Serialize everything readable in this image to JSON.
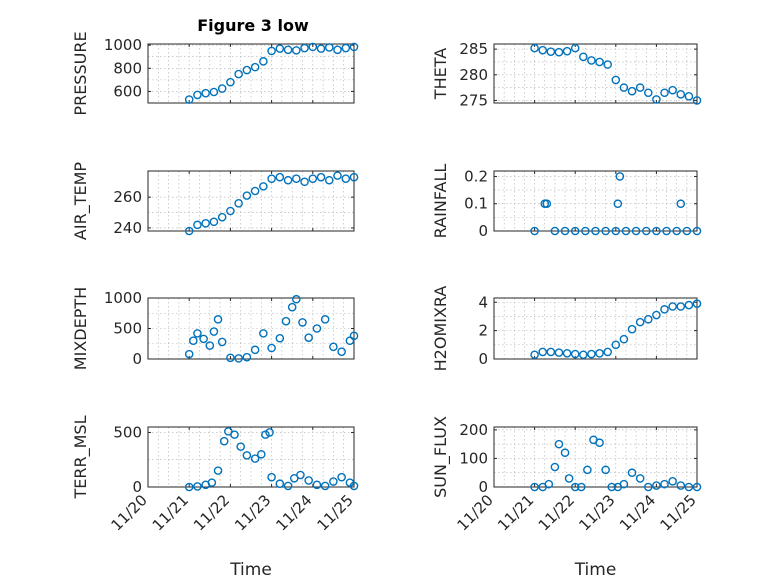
{
  "figure": {
    "title": "Figure 3 low"
  },
  "chart_data": [
    {
      "type": "scatter",
      "ylabel": "PRESSURE",
      "xlabel": "",
      "x_tick_labels": [
        "11/20",
        "11/21",
        "11/22",
        "11/23",
        "11/24",
        "11/25"
      ],
      "y_ticks": [
        600,
        800,
        1000
      ],
      "y_tick_labels": [
        "600",
        "800",
        "1000"
      ],
      "ylim": [
        500,
        1010
      ],
      "x": [
        1.0,
        1.2,
        1.4,
        1.6,
        1.8,
        2.0,
        2.2,
        2.4,
        2.6,
        2.8,
        3.0,
        3.2,
        3.4,
        3.6,
        3.8,
        4.0,
        4.2,
        4.4,
        4.6,
        4.8,
        5.0
      ],
      "y": [
        530,
        570,
        585,
        595,
        625,
        680,
        750,
        785,
        810,
        860,
        950,
        970,
        960,
        955,
        975,
        985,
        970,
        980,
        960,
        975,
        985
      ]
    },
    {
      "type": "scatter",
      "ylabel": "THETA",
      "xlabel": "",
      "x_tick_labels": [
        "11/20",
        "11/21",
        "11/22",
        "11/23",
        "11/24",
        "11/25"
      ],
      "y_ticks": [
        275,
        280,
        285
      ],
      "y_tick_labels": [
        "275",
        "280",
        "285"
      ],
      "ylim": [
        274.5,
        286
      ],
      "x": [
        1.0,
        1.2,
        1.4,
        1.6,
        1.8,
        2.0,
        2.2,
        2.4,
        2.6,
        2.8,
        3.0,
        3.2,
        3.4,
        3.6,
        3.8,
        4.0,
        4.2,
        4.4,
        4.6,
        4.8,
        5.0
      ],
      "y": [
        285.2,
        284.8,
        284.5,
        284.4,
        284.6,
        285.2,
        283.5,
        282.8,
        282.5,
        282.0,
        279.0,
        277.5,
        276.8,
        277.5,
        276.5,
        275.2,
        276.5,
        277.0,
        276.2,
        275.8,
        275.0
      ]
    },
    {
      "type": "scatter",
      "ylabel": "AIR_TEMP",
      "xlabel": "",
      "x_tick_labels": [
        "11/20",
        "11/21",
        "11/22",
        "11/23",
        "11/24",
        "11/25"
      ],
      "y_ticks": [
        240,
        260
      ],
      "y_tick_labels": [
        "240",
        "260"
      ],
      "ylim": [
        238,
        277
      ],
      "x": [
        1.0,
        1.2,
        1.4,
        1.6,
        1.8,
        2.0,
        2.2,
        2.4,
        2.6,
        2.8,
        3.0,
        3.2,
        3.4,
        3.6,
        3.8,
        4.0,
        4.2,
        4.4,
        4.6,
        4.8,
        5.0
      ],
      "y": [
        238,
        242,
        243,
        244,
        247,
        251,
        256,
        261,
        264,
        267,
        272,
        273,
        271,
        272,
        270,
        272,
        273,
        271,
        274,
        272,
        273
      ]
    },
    {
      "type": "scatter",
      "ylabel": "RAINFALL",
      "xlabel": "",
      "x_tick_labels": [
        "11/20",
        "11/21",
        "11/22",
        "11/23",
        "11/24",
        "11/25"
      ],
      "y_ticks": [
        0,
        0.1,
        0.2
      ],
      "y_tick_labels": [
        "0",
        "0.1",
        "0.2"
      ],
      "ylim": [
        0,
        0.22
      ],
      "x": [
        1.0,
        1.25,
        1.3,
        1.5,
        1.75,
        2.0,
        2.25,
        2.5,
        2.75,
        3.0,
        3.05,
        3.1,
        3.25,
        3.5,
        3.75,
        4.0,
        4.25,
        4.5,
        4.6,
        4.75,
        5.0
      ],
      "y": [
        0,
        0.1,
        0.1,
        0,
        0,
        0,
        0,
        0,
        0,
        0,
        0.1,
        0.2,
        0,
        0,
        0,
        0,
        0,
        0,
        0.1,
        0,
        0
      ]
    },
    {
      "type": "scatter",
      "ylabel": "MIXDEPTH",
      "xlabel": "",
      "x_tick_labels": [
        "11/20",
        "11/21",
        "11/22",
        "11/23",
        "11/24",
        "11/25"
      ],
      "y_ticks": [
        0,
        500,
        1000
      ],
      "y_tick_labels": [
        "0",
        "500",
        "1000"
      ],
      "ylim": [
        0,
        1000
      ],
      "x": [
        1.0,
        1.1,
        1.2,
        1.35,
        1.5,
        1.6,
        1.7,
        1.8,
        2.0,
        2.2,
        2.4,
        2.6,
        2.8,
        3.0,
        3.2,
        3.35,
        3.5,
        3.6,
        3.75,
        3.9,
        4.1,
        4.3,
        4.5,
        4.7,
        4.9,
        5.0
      ],
      "y": [
        80,
        300,
        420,
        330,
        220,
        450,
        650,
        280,
        20,
        10,
        30,
        150,
        420,
        180,
        340,
        620,
        850,
        980,
        600,
        350,
        500,
        650,
        200,
        120,
        300,
        380
      ]
    },
    {
      "type": "scatter",
      "ylabel": "H2OMIXRA",
      "xlabel": "",
      "x_tick_labels": [
        "11/20",
        "11/21",
        "11/22",
        "11/23",
        "11/24",
        "11/25"
      ],
      "y_ticks": [
        0,
        2,
        4
      ],
      "y_tick_labels": [
        "0",
        "2",
        "4"
      ],
      "ylim": [
        0,
        4.3
      ],
      "x": [
        1.0,
        1.2,
        1.4,
        1.6,
        1.8,
        2.0,
        2.2,
        2.4,
        2.6,
        2.8,
        3.0,
        3.2,
        3.4,
        3.6,
        3.8,
        4.0,
        4.2,
        4.4,
        4.6,
        4.8,
        5.0
      ],
      "y": [
        0.3,
        0.5,
        0.5,
        0.45,
        0.4,
        0.35,
        0.3,
        0.35,
        0.4,
        0.5,
        1.0,
        1.4,
        2.1,
        2.6,
        2.8,
        3.1,
        3.5,
        3.7,
        3.7,
        3.8,
        3.9
      ]
    },
    {
      "type": "scatter",
      "ylabel": "TERR_MSL",
      "xlabel": "Time",
      "x_tick_labels": [
        "11/20",
        "11/21",
        "11/22",
        "11/23",
        "11/24",
        "11/25"
      ],
      "y_ticks": [
        0,
        500
      ],
      "y_tick_labels": [
        "0",
        "500"
      ],
      "ylim": [
        0,
        550
      ],
      "x": [
        1.0,
        1.2,
        1.4,
        1.55,
        1.7,
        1.85,
        1.95,
        2.1,
        2.25,
        2.4,
        2.6,
        2.75,
        2.85,
        2.95,
        3.0,
        3.2,
        3.4,
        3.55,
        3.7,
        3.9,
        4.1,
        4.3,
        4.5,
        4.7,
        4.9,
        5.0
      ],
      "y": [
        0,
        5,
        20,
        40,
        150,
        420,
        510,
        480,
        370,
        290,
        260,
        300,
        480,
        500,
        90,
        30,
        10,
        80,
        110,
        60,
        20,
        10,
        50,
        90,
        40,
        10
      ]
    },
    {
      "type": "scatter",
      "ylabel": "SUN_FLUX",
      "xlabel": "Time",
      "x_tick_labels": [
        "11/20",
        "11/21",
        "11/22",
        "11/23",
        "11/24",
        "11/25"
      ],
      "y_ticks": [
        0,
        100,
        200
      ],
      "y_tick_labels": [
        "0",
        "100",
        "200"
      ],
      "ylim": [
        0,
        210
      ],
      "x": [
        1.0,
        1.2,
        1.35,
        1.5,
        1.6,
        1.75,
        1.85,
        2.0,
        2.15,
        2.3,
        2.45,
        2.6,
        2.75,
        2.9,
        3.05,
        3.2,
        3.4,
        3.6,
        3.8,
        4.0,
        4.2,
        4.4,
        4.6,
        4.8,
        5.0
      ],
      "y": [
        0,
        0,
        10,
        70,
        150,
        120,
        30,
        0,
        0,
        60,
        165,
        155,
        60,
        0,
        0,
        10,
        50,
        30,
        0,
        5,
        10,
        20,
        5,
        0,
        0
      ]
    }
  ]
}
